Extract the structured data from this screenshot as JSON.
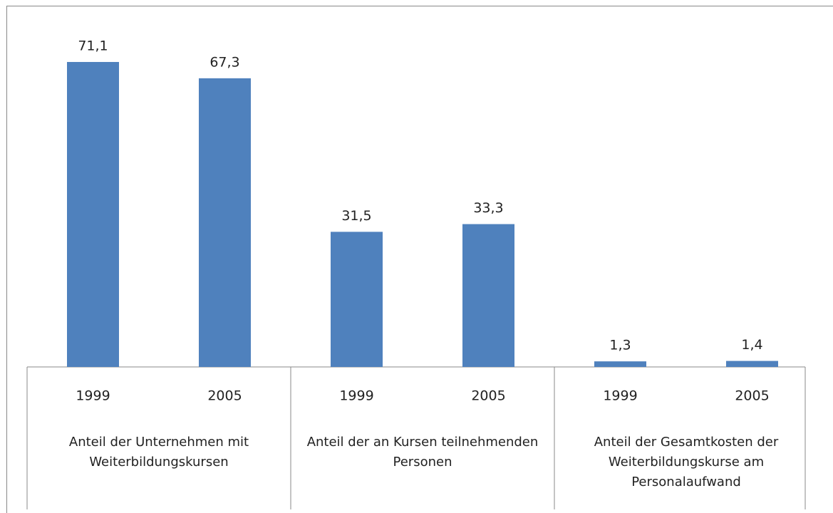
{
  "chart_data": {
    "type": "bar",
    "color": "#4f81bd",
    "groups": [
      {
        "name": "Anteil der Unternehmen mit Weiterbildungskursen",
        "categories": [
          "1999",
          "2005"
        ],
        "values": [
          71.1,
          67.3
        ],
        "value_labels": [
          "71,1",
          "67,3"
        ]
      },
      {
        "name": "Anteil der an Kursen teilnehmenden Personen",
        "categories": [
          "1999",
          "2005"
        ],
        "values": [
          31.5,
          33.3
        ],
        "value_labels": [
          "31,5",
          "33,3"
        ]
      },
      {
        "name": "Anteil der Gesamtkosten der Weiterbildungskurse am Personalaufwand",
        "categories": [
          "1999",
          "2005"
        ],
        "values": [
          1.3,
          1.4
        ],
        "value_labels": [
          "1,3",
          "1,4"
        ]
      }
    ]
  }
}
